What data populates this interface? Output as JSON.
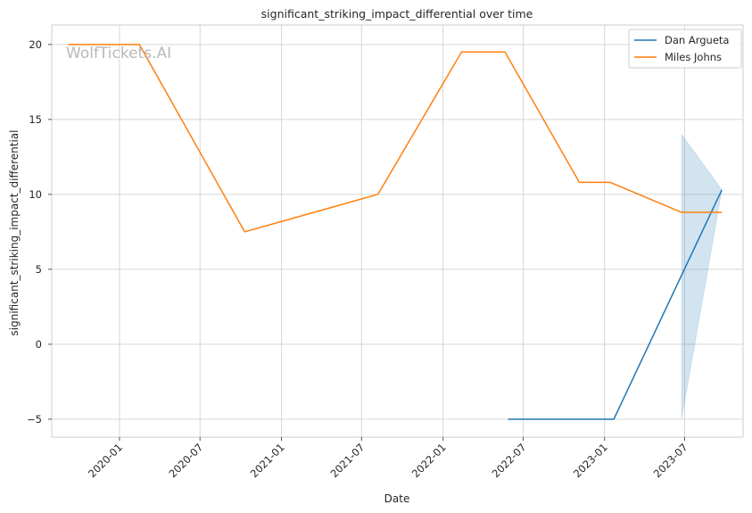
{
  "chart_data": {
    "type": "line",
    "title": "significant_striking_impact_differential over time",
    "xlabel": "Date",
    "ylabel": "significant_striking_impact_differential",
    "watermark": "WolfTickets.AI",
    "xlim": [
      "2019-08-01",
      "2023-11-10"
    ],
    "ylim": [
      -6.2,
      21.3
    ],
    "x_ticks": [
      "2020-01",
      "2020-07",
      "2021-01",
      "2021-07",
      "2022-01",
      "2022-07",
      "2023-01",
      "2023-07"
    ],
    "y_ticks": [
      -5,
      0,
      5,
      10,
      15,
      20
    ],
    "y_tick_labels": [
      "−5",
      "0",
      "5",
      "10",
      "15",
      "20"
    ],
    "grid": true,
    "legend_position": "top-right",
    "series": [
      {
        "name": "Dan Argueta",
        "color": "#1f77b4",
        "x": [
          "2022-05-28",
          "2023-01-22",
          "2023-06-24",
          "2023-09-23"
        ],
        "y": [
          -5,
          -5,
          4.6,
          10.3
        ],
        "band": {
          "x": [
            "2023-06-24",
            "2023-09-23"
          ],
          "lower": [
            -5,
            10.3
          ],
          "upper": [
            14,
            10.3
          ]
        }
      },
      {
        "name": "Miles Johns",
        "color": "#ff7f0e",
        "x": [
          "2019-09-07",
          "2020-02-15",
          "2020-10-10",
          "2021-08-07",
          "2022-02-12",
          "2022-05-21",
          "2022-11-05",
          "2023-01-14",
          "2023-06-24",
          "2023-09-23"
        ],
        "y": [
          20,
          20,
          7.5,
          10,
          19.5,
          19.5,
          10.8,
          10.8,
          8.8,
          8.8
        ]
      }
    ]
  }
}
